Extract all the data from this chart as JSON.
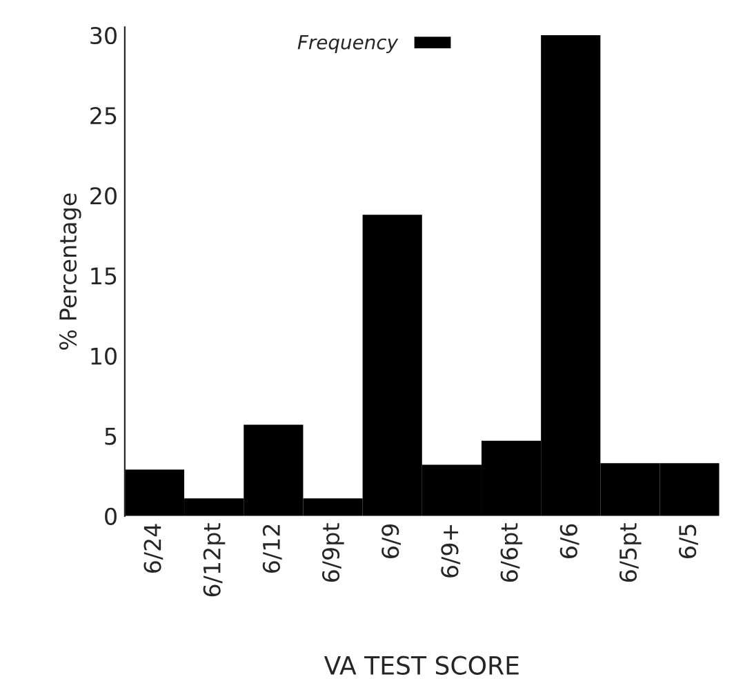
{
  "chart_data": {
    "type": "bar",
    "xlabel": "VA TEST SCORE",
    "ylabel": "% Percentage",
    "categories": [
      "6/24",
      "6/12pt",
      "6/12",
      "6/9pt",
      "6/9",
      "6/9+",
      "6/6pt",
      "6/6",
      "6/5pt",
      "6/5"
    ],
    "series": [
      {
        "name": "Frequency",
        "color": "#000000",
        "values": [
          2.9,
          1.1,
          5.7,
          1.1,
          18.8,
          3.2,
          4.7,
          30,
          3.3,
          3.3
        ]
      }
    ],
    "ylim": [
      0,
      30.5
    ],
    "yticks": [
      0,
      5,
      10,
      15,
      20,
      25,
      30
    ],
    "grid": false,
    "legend": "top"
  }
}
